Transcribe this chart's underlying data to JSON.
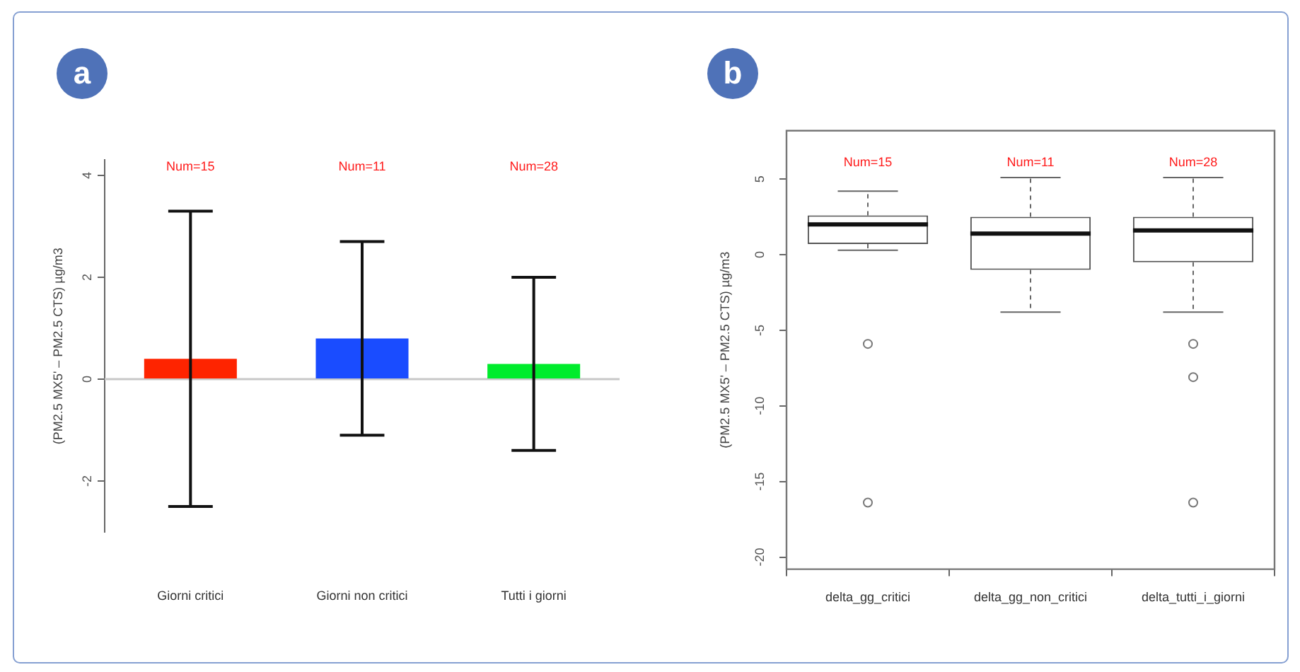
{
  "chart_data": [
    {
      "type": "bar",
      "title": "a",
      "ylabel": "(PM2.5 MX5' – PM2.5 CTS) µg/m3",
      "categories": [
        "Giorni critici",
        "Giorni non critici",
        "Tutti i giorni"
      ],
      "values": [
        0.4,
        0.8,
        0.3
      ],
      "colors": [
        "#fe2400",
        "#1a4cff",
        "#00ec2c"
      ],
      "errors": [
        2.9,
        1.9,
        1.7
      ],
      "ylim": [
        -3,
        4.3
      ],
      "yticks": [
        -2,
        0,
        2,
        4
      ],
      "ref_lines": [
        {
          "axis": "y",
          "value": 0,
          "color": "#c8c8c8"
        }
      ],
      "annotations": [
        "Num=15",
        "Num=11",
        "Num=28"
      ]
    },
    {
      "type": "box",
      "title": "b",
      "ylabel": "(PM2.5 MX5' – PM2.5 CTS) µg/m3",
      "categories": [
        "delta_gg_critici",
        "delta_gg_non_critici",
        "delta_tutti_i_giorni"
      ],
      "boxes": [
        {
          "low": 0.3,
          "q1": 0.7,
          "median": 2.0,
          "q3": 2.6,
          "high": 4.2,
          "outliers": [
            -5.9,
            -16.4
          ]
        },
        {
          "low": -3.8,
          "q1": -1.0,
          "median": 1.4,
          "q3": 2.5,
          "high": 5.1
        },
        {
          "low": -3.8,
          "q1": -0.5,
          "median": 1.6,
          "q3": 2.5,
          "high": 5.1,
          "outliers": [
            -5.9,
            -8.1,
            -16.4
          ]
        }
      ],
      "ylim": [
        -20.8,
        8.2
      ],
      "yticks": [
        -20,
        -15,
        -10,
        -5,
        0,
        5
      ],
      "annotations": [
        "Num=15",
        "Num=11",
        "Num=28"
      ]
    }
  ]
}
